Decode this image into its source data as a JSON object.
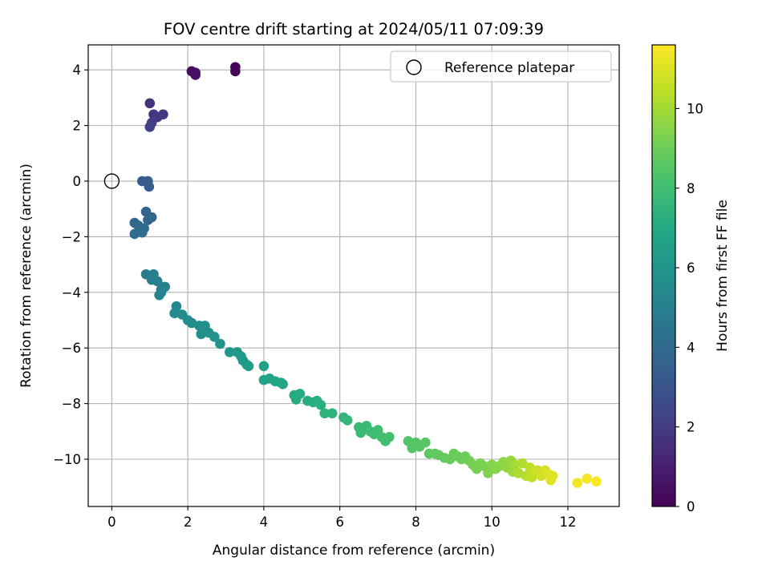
{
  "chart_data": {
    "type": "scatter",
    "title": "FOV centre drift starting at 2024/05/11 07:09:39",
    "xlabel": "Angular distance from reference (arcmin)",
    "ylabel": "Rotation from reference (arcmin)",
    "xlim": [
      -0.62,
      13.35
    ],
    "ylim": [
      -11.7,
      4.9
    ],
    "x_ticks": [
      0,
      2,
      4,
      6,
      8,
      10,
      12
    ],
    "y_ticks": [
      -10,
      -8,
      -6,
      -4,
      -2,
      0,
      2,
      4
    ],
    "grid": true,
    "legend": {
      "placement": "top-right",
      "entries": [
        "Reference platepar"
      ]
    },
    "reference_point": {
      "x": 0,
      "y": 0
    },
    "colorbar": {
      "label": "Hours from first FF file",
      "colormap": "viridis",
      "range": [
        0,
        11.6
      ],
      "ticks": [
        0,
        2,
        4,
        6,
        8,
        10
      ]
    },
    "series": [
      {
        "points": [
          {
            "x": 3.25,
            "y": 4.1,
            "h": 0.1
          },
          {
            "x": 3.25,
            "y": 3.95,
            "h": 0.15
          },
          {
            "x": 2.1,
            "y": 3.95,
            "h": 0.4
          },
          {
            "x": 2.2,
            "y": 3.9,
            "h": 0.45
          },
          {
            "x": 2.2,
            "y": 3.82,
            "h": 0.5
          },
          {
            "x": 1.0,
            "y": 2.8,
            "h": 1.6
          },
          {
            "x": 1.1,
            "y": 2.4,
            "h": 1.8
          },
          {
            "x": 1.35,
            "y": 2.4,
            "h": 1.9
          },
          {
            "x": 1.2,
            "y": 2.3,
            "h": 2.0
          },
          {
            "x": 1.05,
            "y": 2.1,
            "h": 2.1
          },
          {
            "x": 1.0,
            "y": 1.95,
            "h": 2.2
          },
          {
            "x": 0.8,
            "y": 0.0,
            "h": 3.3
          },
          {
            "x": 0.95,
            "y": 0.0,
            "h": 3.35
          },
          {
            "x": 0.98,
            "y": -0.2,
            "h": 3.4
          },
          {
            "x": 0.9,
            "y": -1.1,
            "h": 3.7
          },
          {
            "x": 1.05,
            "y": -1.3,
            "h": 3.75
          },
          {
            "x": 0.95,
            "y": -1.4,
            "h": 3.8
          },
          {
            "x": 0.6,
            "y": -1.5,
            "h": 3.9
          },
          {
            "x": 0.7,
            "y": -1.6,
            "h": 3.95
          },
          {
            "x": 0.85,
            "y": -1.7,
            "h": 4.0
          },
          {
            "x": 0.75,
            "y": -1.75,
            "h": 4.05
          },
          {
            "x": 0.6,
            "y": -1.9,
            "h": 4.1
          },
          {
            "x": 0.8,
            "y": -1.85,
            "h": 4.15
          },
          {
            "x": 0.9,
            "y": -3.35,
            "h": 4.8
          },
          {
            "x": 1.1,
            "y": -3.35,
            "h": 4.85
          },
          {
            "x": 1.05,
            "y": -3.55,
            "h": 4.9
          },
          {
            "x": 1.2,
            "y": -3.6,
            "h": 4.95
          },
          {
            "x": 1.4,
            "y": -3.8,
            "h": 5.0
          },
          {
            "x": 1.3,
            "y": -3.9,
            "h": 5.05
          },
          {
            "x": 1.25,
            "y": -4.1,
            "h": 5.1
          },
          {
            "x": 1.3,
            "y": -4.0,
            "h": 5.15
          },
          {
            "x": 1.7,
            "y": -4.5,
            "h": 5.4
          },
          {
            "x": 1.65,
            "y": -4.75,
            "h": 5.45
          },
          {
            "x": 1.85,
            "y": -4.8,
            "h": 5.5
          },
          {
            "x": 2.0,
            "y": -5.0,
            "h": 5.55
          },
          {
            "x": 2.1,
            "y": -5.1,
            "h": 5.6
          },
          {
            "x": 2.3,
            "y": -5.2,
            "h": 5.65
          },
          {
            "x": 2.45,
            "y": -5.2,
            "h": 5.7
          },
          {
            "x": 2.35,
            "y": -5.5,
            "h": 5.75
          },
          {
            "x": 2.55,
            "y": -5.45,
            "h": 5.8
          },
          {
            "x": 2.7,
            "y": -5.6,
            "h": 5.85
          },
          {
            "x": 2.85,
            "y": -5.85,
            "h": 5.95
          },
          {
            "x": 3.1,
            "y": -6.15,
            "h": 6.1
          },
          {
            "x": 3.3,
            "y": -6.15,
            "h": 6.15
          },
          {
            "x": 3.4,
            "y": -6.3,
            "h": 6.2
          },
          {
            "x": 3.45,
            "y": -6.45,
            "h": 6.25
          },
          {
            "x": 3.55,
            "y": -6.6,
            "h": 6.3
          },
          {
            "x": 3.6,
            "y": -6.65,
            "h": 6.35
          },
          {
            "x": 4.0,
            "y": -6.65,
            "h": 6.6
          },
          {
            "x": 4.0,
            "y": -7.15,
            "h": 6.65
          },
          {
            "x": 4.15,
            "y": -7.1,
            "h": 6.7
          },
          {
            "x": 4.3,
            "y": -7.2,
            "h": 6.75
          },
          {
            "x": 4.45,
            "y": -7.25,
            "h": 6.8
          },
          {
            "x": 4.5,
            "y": -7.3,
            "h": 6.85
          },
          {
            "x": 4.8,
            "y": -7.7,
            "h": 7.0
          },
          {
            "x": 4.85,
            "y": -7.85,
            "h": 7.05
          },
          {
            "x": 4.95,
            "y": -7.65,
            "h": 7.1
          },
          {
            "x": 5.15,
            "y": -7.9,
            "h": 7.15
          },
          {
            "x": 5.3,
            "y": -7.95,
            "h": 7.2
          },
          {
            "x": 5.4,
            "y": -7.9,
            "h": 7.25
          },
          {
            "x": 5.5,
            "y": -8.05,
            "h": 7.3
          },
          {
            "x": 5.6,
            "y": -8.35,
            "h": 7.4
          },
          {
            "x": 5.8,
            "y": -8.35,
            "h": 7.45
          },
          {
            "x": 6.1,
            "y": -8.5,
            "h": 7.6
          },
          {
            "x": 6.2,
            "y": -8.6,
            "h": 7.65
          },
          {
            "x": 6.5,
            "y": -8.85,
            "h": 7.75
          },
          {
            "x": 6.55,
            "y": -9.05,
            "h": 7.8
          },
          {
            "x": 6.7,
            "y": -8.8,
            "h": 7.85
          },
          {
            "x": 6.8,
            "y": -9.0,
            "h": 7.9
          },
          {
            "x": 6.9,
            "y": -9.1,
            "h": 7.95
          },
          {
            "x": 7.0,
            "y": -8.95,
            "h": 8.0
          },
          {
            "x": 7.1,
            "y": -9.2,
            "h": 8.05
          },
          {
            "x": 7.2,
            "y": -9.35,
            "h": 8.1
          },
          {
            "x": 7.3,
            "y": -9.2,
            "h": 8.15
          },
          {
            "x": 7.8,
            "y": -9.35,
            "h": 8.4
          },
          {
            "x": 7.9,
            "y": -9.6,
            "h": 8.45
          },
          {
            "x": 8.0,
            "y": -9.4,
            "h": 8.5
          },
          {
            "x": 8.1,
            "y": -9.55,
            "h": 8.55
          },
          {
            "x": 8.25,
            "y": -9.4,
            "h": 8.6
          },
          {
            "x": 8.35,
            "y": -9.8,
            "h": 8.65
          },
          {
            "x": 8.5,
            "y": -9.8,
            "h": 8.7
          },
          {
            "x": 8.6,
            "y": -9.85,
            "h": 8.75
          },
          {
            "x": 8.75,
            "y": -9.95,
            "h": 8.8
          },
          {
            "x": 8.9,
            "y": -10.0,
            "h": 8.85
          },
          {
            "x": 9.0,
            "y": -9.8,
            "h": 8.9
          },
          {
            "x": 9.1,
            "y": -9.9,
            "h": 8.95
          },
          {
            "x": 9.2,
            "y": -10.0,
            "h": 9.0
          },
          {
            "x": 9.3,
            "y": -9.9,
            "h": 9.05
          },
          {
            "x": 9.4,
            "y": -10.05,
            "h": 9.1
          },
          {
            "x": 9.5,
            "y": -10.2,
            "h": 9.15
          },
          {
            "x": 9.6,
            "y": -10.35,
            "h": 9.2
          },
          {
            "x": 9.7,
            "y": -10.15,
            "h": 9.25
          },
          {
            "x": 9.8,
            "y": -10.25,
            "h": 9.3
          },
          {
            "x": 9.9,
            "y": -10.5,
            "h": 9.35
          },
          {
            "x": 10.0,
            "y": -10.2,
            "h": 9.4
          },
          {
            "x": 10.1,
            "y": -10.35,
            "h": 9.45
          },
          {
            "x": 10.2,
            "y": -10.25,
            "h": 9.5
          },
          {
            "x": 10.3,
            "y": -10.1,
            "h": 9.6
          },
          {
            "x": 10.4,
            "y": -10.3,
            "h": 9.7
          },
          {
            "x": 10.5,
            "y": -10.05,
            "h": 9.8
          },
          {
            "x": 10.55,
            "y": -10.45,
            "h": 9.9
          },
          {
            "x": 10.6,
            "y": -10.2,
            "h": 10.0
          },
          {
            "x": 10.7,
            "y": -10.5,
            "h": 10.1
          },
          {
            "x": 10.8,
            "y": -10.15,
            "h": 10.2
          },
          {
            "x": 10.9,
            "y": -10.6,
            "h": 10.3
          },
          {
            "x": 11.0,
            "y": -10.3,
            "h": 10.4
          },
          {
            "x": 11.05,
            "y": -10.65,
            "h": 10.5
          },
          {
            "x": 11.1,
            "y": -10.45,
            "h": 10.6
          },
          {
            "x": 11.2,
            "y": -10.4,
            "h": 10.7
          },
          {
            "x": 11.3,
            "y": -10.6,
            "h": 10.8
          },
          {
            "x": 11.4,
            "y": -10.4,
            "h": 10.9
          },
          {
            "x": 11.5,
            "y": -10.55,
            "h": 11.0
          },
          {
            "x": 11.55,
            "y": -10.75,
            "h": 11.05
          },
          {
            "x": 11.6,
            "y": -10.6,
            "h": 11.1
          },
          {
            "x": 12.25,
            "y": -10.85,
            "h": 11.4
          },
          {
            "x": 12.5,
            "y": -10.7,
            "h": 11.5
          },
          {
            "x": 12.75,
            "y": -10.8,
            "h": 11.55
          }
        ]
      }
    ]
  }
}
